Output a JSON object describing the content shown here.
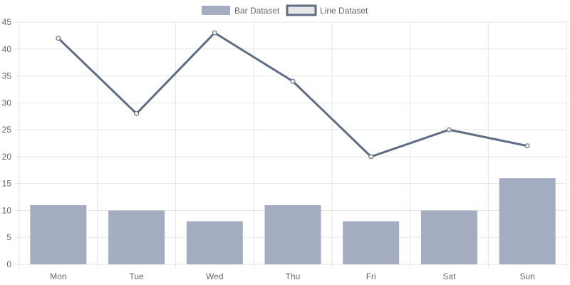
{
  "chart_data": {
    "type": "bar",
    "categories": [
      "Mon",
      "Tue",
      "Wed",
      "Thu",
      "Fri",
      "Sat",
      "Sun"
    ],
    "series": [
      {
        "name": "Bar Dataset",
        "type": "bar",
        "values": [
          11,
          10,
          8,
          11,
          8,
          10,
          16
        ],
        "color": "#a3adbf"
      },
      {
        "name": "Line Dataset",
        "type": "line",
        "values": [
          42,
          28,
          43,
          34,
          20,
          25,
          22
        ],
        "color": "#5f6d84"
      }
    ],
    "ylim": [
      0,
      45
    ],
    "yticks": [
      0,
      5,
      10,
      15,
      20,
      25,
      30,
      35,
      40,
      45
    ],
    "grid": true,
    "legend_position": "top-center",
    "colors": {
      "grid": "#e5e5e5",
      "tick_text": "#666666",
      "line_legend_fill": "#e6e6e6"
    }
  }
}
